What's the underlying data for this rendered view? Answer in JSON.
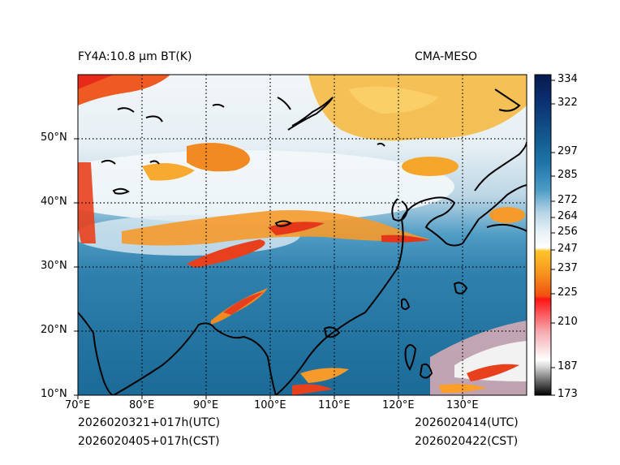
{
  "header": {
    "left_title": "FY4A:10.8 µm BT(K)",
    "right_title": "CMA-MESO"
  },
  "footer": {
    "init_utc": "2026020321+017h(UTC)",
    "init_cst": "2026020405+017h(CST)",
    "valid_utc": "2026020414(UTC)",
    "valid_cst": "2026020422(CST)"
  },
  "axes": {
    "x_ticks": [
      "70°E",
      "80°E",
      "90°E",
      "100°E",
      "110°E",
      "120°E",
      "130°E"
    ],
    "y_ticks": [
      "10°N",
      "20°N",
      "30°N",
      "40°N",
      "50°N"
    ]
  },
  "colorbar": {
    "ticks": [
      "173",
      "187",
      "210",
      "225",
      "237",
      "247",
      "256",
      "264",
      "272",
      "285",
      "297",
      "322",
      "334"
    ]
  },
  "colors": {
    "ocean_warm": "#1d6f9c",
    "cloud_cold": "#ffffff",
    "cirrus": "#f5b82a",
    "deep_convection": "#e8401c",
    "gridline": "#000000"
  }
}
